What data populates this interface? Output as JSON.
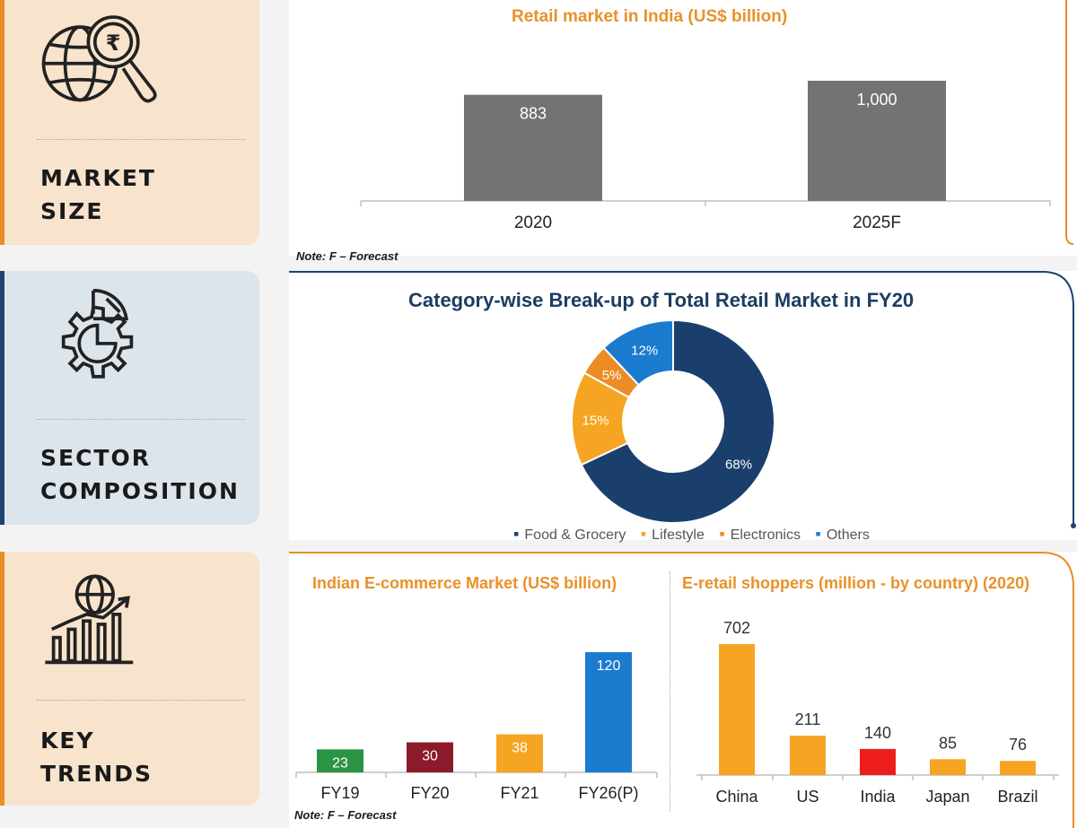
{
  "sidebar": {
    "market": {
      "lines": [
        "MARKET",
        "SIZE"
      ],
      "icon": "globe-rupee-magnifier-icon",
      "accent": "#e88f23"
    },
    "sector": {
      "lines": [
        "SECTOR",
        "COMPOSITION"
      ],
      "icon": "gear-pie-icon",
      "accent": "#1c4372"
    },
    "trends": {
      "lines": [
        "KEY",
        "TRENDS"
      ],
      "icon": "globe-growth-chart-icon",
      "accent": "#e88f23"
    }
  },
  "notes": {
    "market": "Note: F – Forecast",
    "trends": "Note: F – Forecast"
  },
  "chart_data": [
    {
      "id": "retail-market",
      "type": "bar",
      "title": "Retail market in India (US$ billion)",
      "categories": [
        "2020",
        "2025F"
      ],
      "values": [
        883,
        1000
      ],
      "value_labels": [
        "883",
        "1,000"
      ],
      "color": "#737373",
      "ylim": [
        0,
        1000
      ],
      "xlabel": "",
      "ylabel": ""
    },
    {
      "id": "category-breakup",
      "type": "pie",
      "title": "Category-wise Break-up of Total Retail Market in FY20",
      "categories": [
        "Food & Grocery",
        "Lifestyle",
        "Electronics",
        "Others"
      ],
      "values": [
        68,
        15,
        5,
        12
      ],
      "value_labels": [
        "68%",
        "15%",
        "5%",
        "12%"
      ],
      "colors": [
        "#1b3f6d",
        "#f6a522",
        "#ed8b25",
        "#1a7bcf"
      ],
      "legend_position": "bottom"
    },
    {
      "id": "ecommerce-market",
      "type": "bar",
      "title": "Indian E-commerce Market (US$ billion)",
      "categories": [
        "FY19",
        "FY20",
        "FY21",
        "FY26(P)"
      ],
      "values": [
        23,
        30,
        38,
        120
      ],
      "colors": [
        "#2a9444",
        "#8b1a2a",
        "#f6a522",
        "#1a7bcf"
      ],
      "ylim": [
        0,
        135
      ]
    },
    {
      "id": "eretail-shoppers",
      "type": "bar",
      "title": "E-retail shoppers (million - by country) (2020)",
      "categories": [
        "China",
        "US",
        "India",
        "Japan",
        "Brazil"
      ],
      "values": [
        702,
        211,
        140,
        85,
        76
      ],
      "colors": [
        "#f6a522",
        "#f6a522",
        "#ee1d1d",
        "#f6a522",
        "#f6a522"
      ],
      "ylim": [
        0,
        780
      ]
    }
  ]
}
